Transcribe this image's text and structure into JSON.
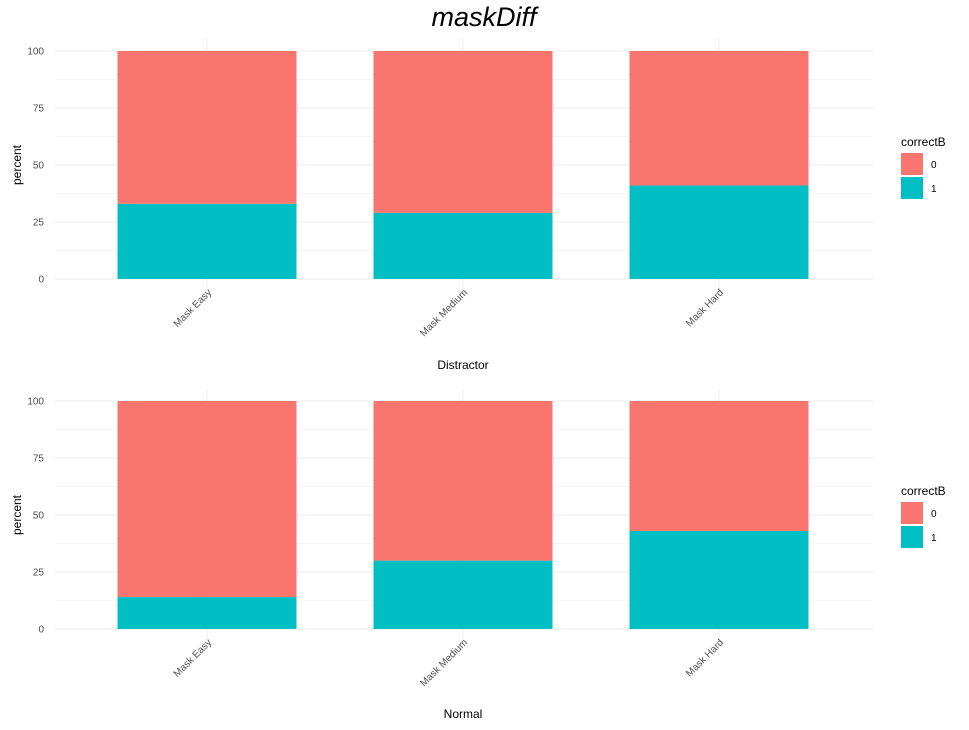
{
  "title": "maskDiff",
  "colors": {
    "0": "#F8766D",
    "1": "#00BFC4"
  },
  "chart_data": [
    {
      "type": "bar",
      "stacked": true,
      "categories": [
        "Mask Easy",
        "Mask Medium",
        "Mask Hard"
      ],
      "series": [
        {
          "name": "0",
          "values": [
            67,
            71,
            59
          ]
        },
        {
          "name": "1",
          "values": [
            33,
            29,
            41
          ]
        }
      ],
      "xlabel": "Distractor",
      "ylabel": "percent",
      "ylim": [
        0,
        100
      ],
      "yticks": [
        0,
        25,
        50,
        75,
        100
      ],
      "legend_title": "correctB",
      "legend_position": "right",
      "grid": true
    },
    {
      "type": "bar",
      "stacked": true,
      "categories": [
        "Mask Easy",
        "Mask Medium",
        "Mask Hard"
      ],
      "series": [
        {
          "name": "0",
          "values": [
            86,
            70,
            57
          ]
        },
        {
          "name": "1",
          "values": [
            14,
            30,
            43
          ]
        }
      ],
      "xlabel": "Normal",
      "ylabel": "percent",
      "ylim": [
        0,
        100
      ],
      "yticks": [
        0,
        25,
        50,
        75,
        100
      ],
      "legend_title": "correctB",
      "legend_position": "right",
      "grid": true
    }
  ]
}
